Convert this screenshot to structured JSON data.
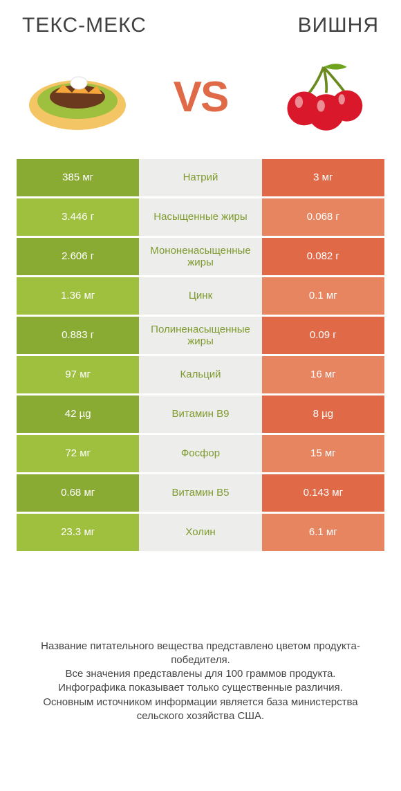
{
  "colors": {
    "green_dark": "#8aab33",
    "green_light": "#9fbf3e",
    "orange_dark": "#e06a47",
    "orange_light": "#e78561",
    "mid_bg": "#edeeec",
    "label_green": "#7e9a2e",
    "label_orange": "#d55f3f"
  },
  "header": {
    "left": "ТЕКС-МЕКС",
    "right": "ВИШНЯ",
    "vs": "VS"
  },
  "rows": [
    {
      "left": "385 мг",
      "label": "Натрий",
      "right": "3 мг",
      "winner": "left"
    },
    {
      "left": "3.446 г",
      "label": "Насыщенные жиры",
      "right": "0.068 г",
      "winner": "left"
    },
    {
      "left": "2.606 г",
      "label": "Мононенасыщенные жиры",
      "right": "0.082 г",
      "winner": "left"
    },
    {
      "left": "1.36 мг",
      "label": "Цинк",
      "right": "0.1 мг",
      "winner": "left"
    },
    {
      "left": "0.883 г",
      "label": "Полиненасыщенные жиры",
      "right": "0.09 г",
      "winner": "left"
    },
    {
      "left": "97 мг",
      "label": "Кальций",
      "right": "16 мг",
      "winner": "left"
    },
    {
      "left": "42 µg",
      "label": "Витамин B9",
      "right": "8 µg",
      "winner": "left"
    },
    {
      "left": "72 мг",
      "label": "Фосфор",
      "right": "15 мг",
      "winner": "left"
    },
    {
      "left": "0.68 мг",
      "label": "Витамин B5",
      "right": "0.143 мг",
      "winner": "left"
    },
    {
      "left": "23.3 мг",
      "label": "Холин",
      "right": "6.1 мг",
      "winner": "left"
    }
  ],
  "footer": "Название питательного вещества представлено цветом продукта-победителя.\nВсе значения представлены для 100 граммов продукта.\nИнфографика показывает только существенные различия.\nОсновным источником информации является база министерства сельского хозяйства США."
}
